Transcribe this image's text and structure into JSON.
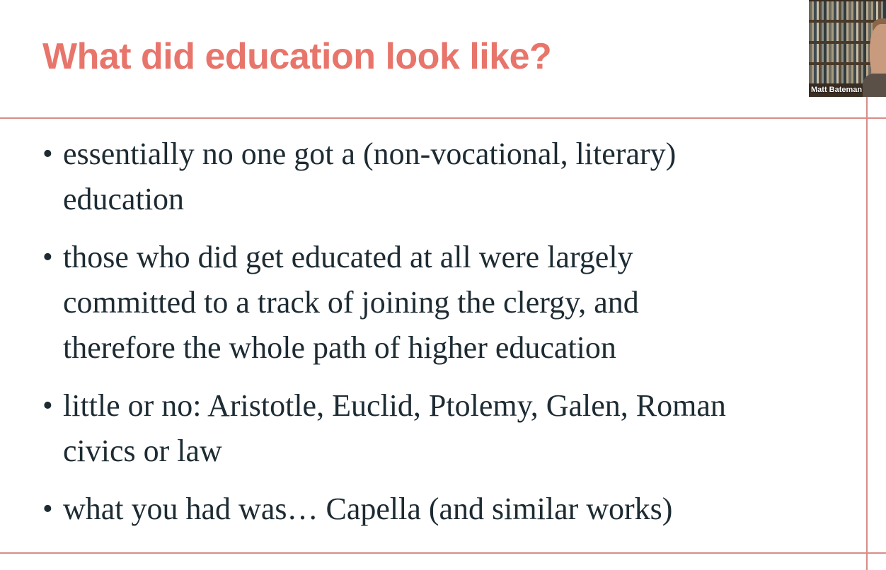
{
  "slide": {
    "title": "What did education look like?",
    "title_color": "#e8756b",
    "rule_color": "#d98c86",
    "bullet_symbol": "•",
    "bullets": [
      {
        "lines": [
          "essentially no one got a (non-vocational, literary)",
          "education"
        ]
      },
      {
        "lines": [
          "those who did get educated at all were largely",
          "committed to a track of joining the clergy, and",
          "therefore the whole path of higher education"
        ]
      },
      {
        "lines": [
          "little or no: Aristotle, Euclid, Ptolemy, Galen, Roman",
          "civics or law"
        ]
      },
      {
        "lines": [
          "what you had was… Capella (and similar works)"
        ]
      }
    ]
  },
  "video_tile": {
    "participant_name": "Matt Bateman"
  }
}
